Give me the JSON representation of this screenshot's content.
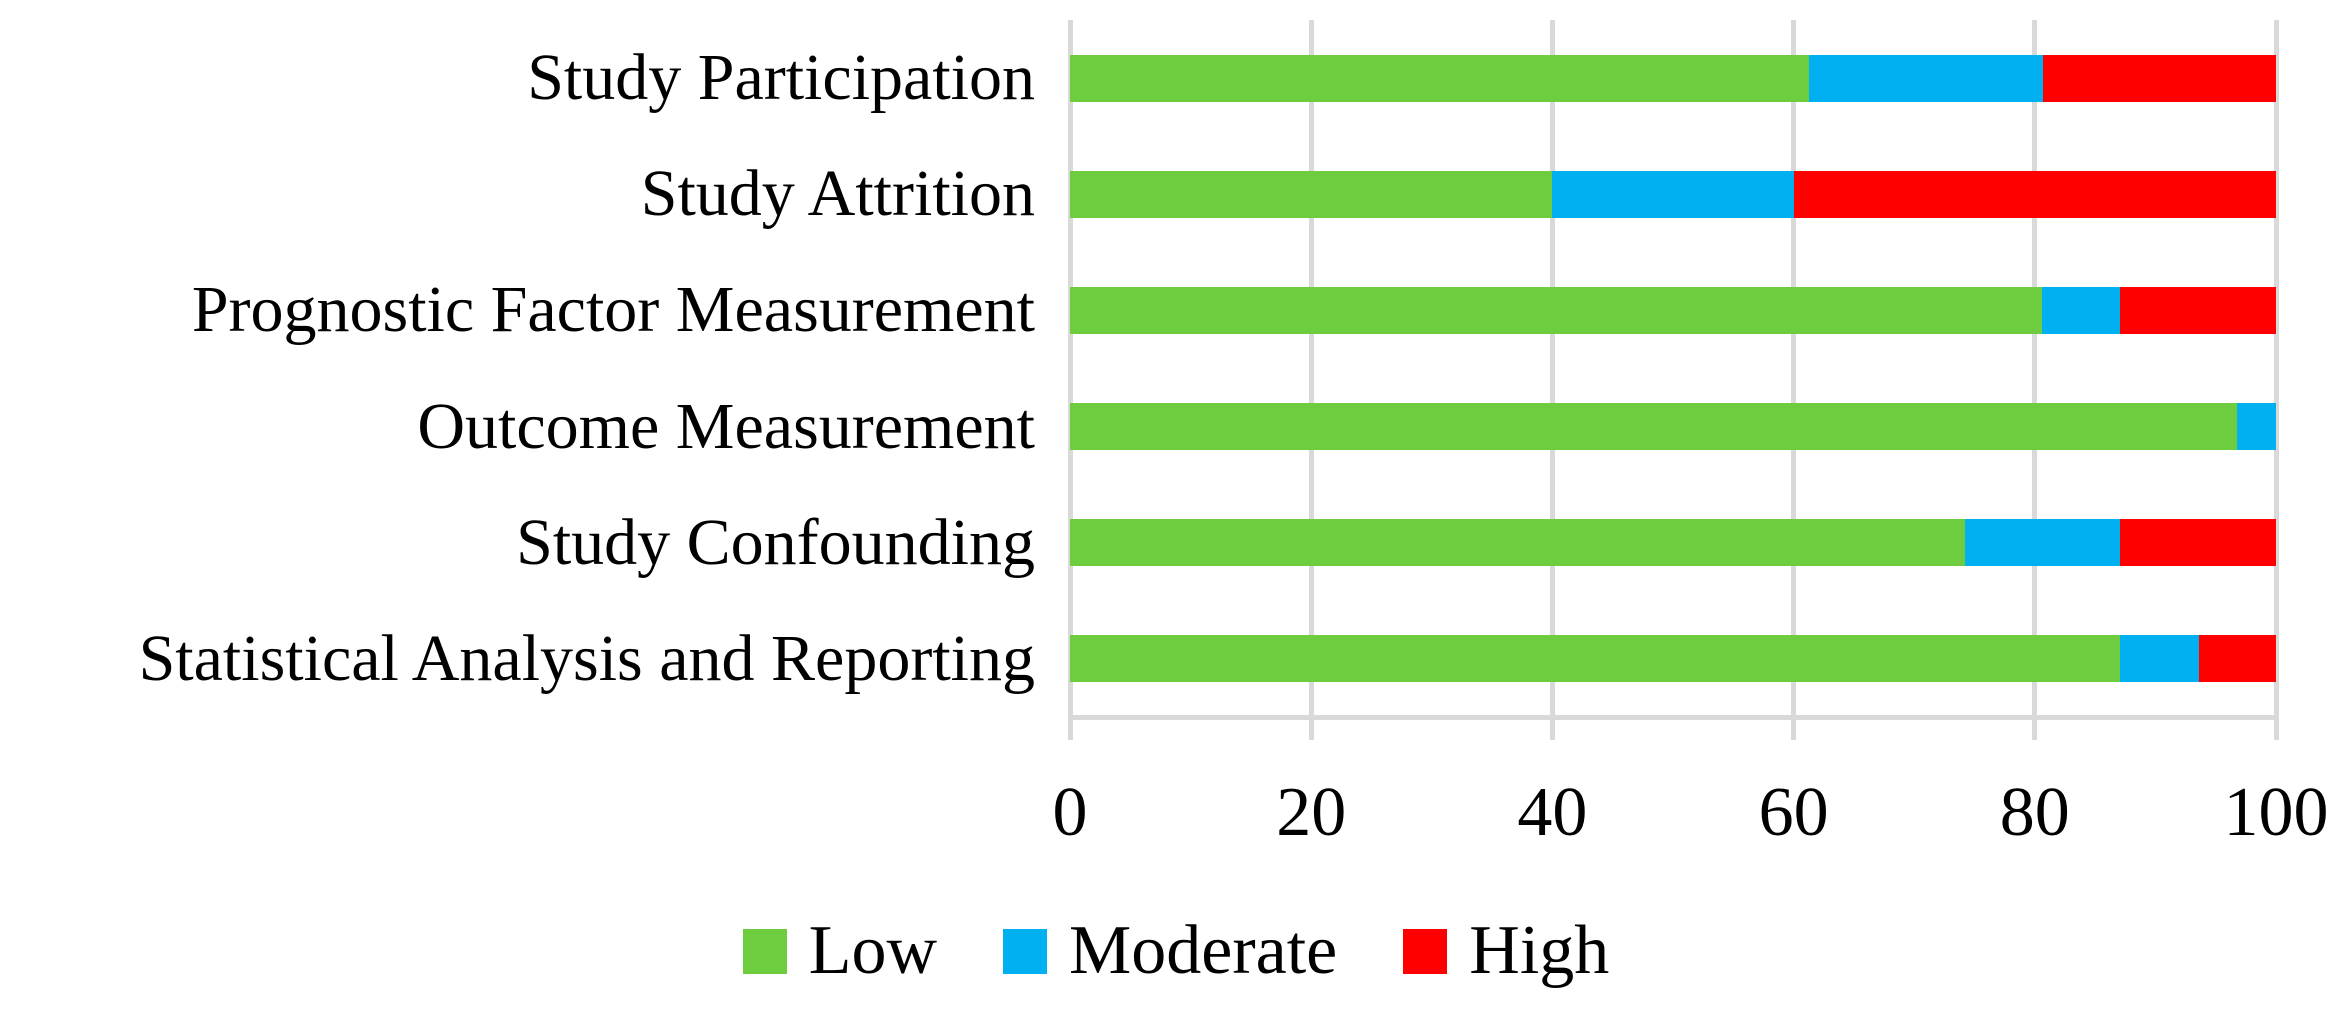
{
  "figure": {
    "background": "#ffffff",
    "text_color": "#000000",
    "gridline_color": "#d9d9d9"
  },
  "chart_data": {
    "type": "bar",
    "orientation": "horizontal-stacked",
    "title": "",
    "xlabel": "",
    "ylabel": "",
    "xlim": [
      0,
      100
    ],
    "x_ticks": [
      0,
      20,
      40,
      60,
      80,
      100
    ],
    "x_tick_labels": [
      "0",
      "20",
      "40",
      "60",
      "80",
      "100"
    ],
    "grid": "vertical-on",
    "legend_position": "bottom",
    "categories": [
      "Study Participation",
      "Study Attrition",
      "Prognostic Factor Measurement",
      "Outcome Measurement",
      "Study Confounding",
      "Statistical Analysis and Reporting"
    ],
    "series": [
      {
        "name": "Low",
        "color": "#6dcd3f",
        "values": [
          61.3,
          40.0,
          80.6,
          96.8,
          74.2,
          87.1
        ]
      },
      {
        "name": "Moderate",
        "color": "#00b0f0",
        "values": [
          19.4,
          20.0,
          6.5,
          3.2,
          12.9,
          6.5
        ]
      },
      {
        "name": "High",
        "color": "#ff0000",
        "values": [
          19.3,
          40.0,
          12.9,
          0.0,
          12.9,
          6.4
        ]
      }
    ]
  },
  "legend": {
    "items": [
      {
        "label": "Low",
        "color": "#6dcd3f"
      },
      {
        "label": "Moderate",
        "color": "#00b0f0"
      },
      {
        "label": "High",
        "color": "#ff0000"
      }
    ]
  }
}
